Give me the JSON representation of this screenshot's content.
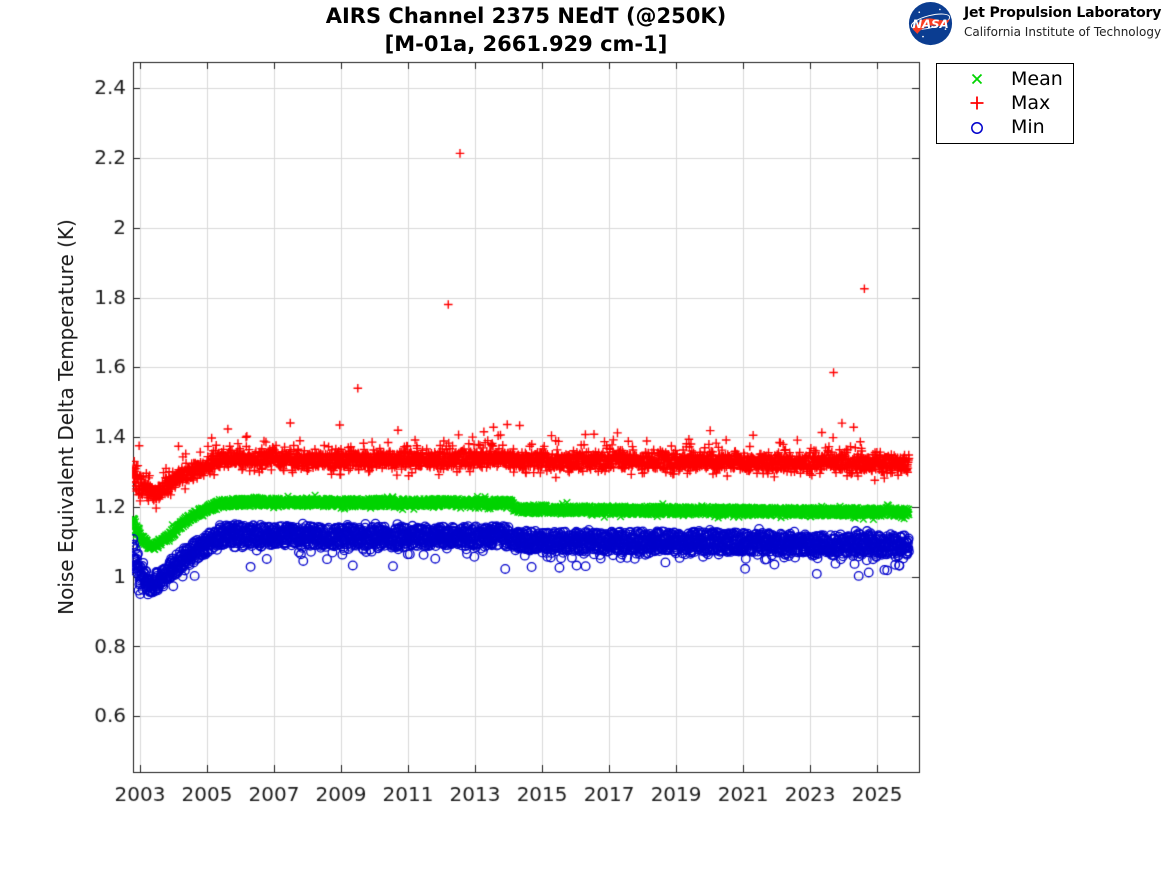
{
  "header": {
    "logo": {
      "nasa_text": "NASA",
      "org_name": "Jet Propulsion Laboratory",
      "org_sub": "California Institute of Technology",
      "nasa_blue": "#0B3D91",
      "nasa_red": "#FC3D21"
    }
  },
  "chart_data": {
    "type": "scatter",
    "title": "AIRS Channel 2375 NEdT (@250K)",
    "subtitle": "[M-01a, 2661.929 cm-1]",
    "xlabel": "",
    "ylabel": "Noise Equivalent Delta Temperature (K)",
    "xlim": [
      2002.79,
      2026.25
    ],
    "ylim": [
      0.44,
      2.475
    ],
    "xticks": [
      2003,
      2005,
      2007,
      2009,
      2011,
      2013,
      2015,
      2017,
      2019,
      2021,
      2023,
      2025
    ],
    "yticks": [
      0.6,
      0.8,
      1,
      1.2,
      1.4,
      1.6,
      1.8,
      2,
      2.2,
      2.4
    ],
    "ytick_labels": [
      "0.6",
      "0.8",
      "1",
      "1.2",
      "1.4",
      "1.6",
      "1.8",
      "2",
      "2.2",
      "2.4"
    ],
    "grid": true,
    "grid_color": "#d9d9d9",
    "axis_color": "#1a1a1a",
    "legend": {
      "position": "northeast-outside",
      "entries": [
        {
          "label": "Mean",
          "marker": "x",
          "color": "#00d400"
        },
        {
          "label": "Max",
          "marker": "+",
          "color": "#ff0000"
        },
        {
          "label": "Min",
          "marker": "o",
          "color": "#0000cc"
        }
      ]
    },
    "seed": 7,
    "points_per_series": 3000,
    "time_range": [
      2002.78,
      2025.95
    ],
    "series": [
      {
        "name": "Mean",
        "marker": "x",
        "color": "#00d400",
        "band": 0.012,
        "tail_up_p": 0.1,
        "tail_up": 0.015,
        "tail_dn_p": 0.1,
        "tail_dn": 0.015,
        "spike_p": 0,
        "spike_min": 0,
        "spike_max": 0,
        "spike_dir": 1,
        "anchors": [
          [
            2002.78,
            1.162
          ],
          [
            2002.92,
            1.128
          ],
          [
            2003.08,
            1.105
          ],
          [
            2003.25,
            1.092
          ],
          [
            2003.45,
            1.088
          ],
          [
            2003.7,
            1.103
          ],
          [
            2004.0,
            1.128
          ],
          [
            2004.4,
            1.163
          ],
          [
            2004.8,
            1.185
          ],
          [
            2005.2,
            1.202
          ],
          [
            2005.6,
            1.212
          ],
          [
            2006.5,
            1.214
          ],
          [
            2009.0,
            1.212
          ],
          [
            2012.0,
            1.212
          ],
          [
            2014.1,
            1.211
          ],
          [
            2014.18,
            1.193
          ],
          [
            2016.0,
            1.191
          ],
          [
            2019.0,
            1.189
          ],
          [
            2022.0,
            1.187
          ],
          [
            2024.0,
            1.186
          ],
          [
            2025.95,
            1.185
          ]
        ],
        "outliers": []
      },
      {
        "name": "Max",
        "marker": "+",
        "color": "#ff0000",
        "band": 0.02,
        "tail_up_p": 0.3,
        "tail_up": 0.05,
        "tail_dn_p": 0.25,
        "tail_dn": 0.035,
        "spike_p": 0.012,
        "spike_min": 0.03,
        "spike_max": 0.085,
        "spike_dir": 1,
        "anchors": [
          [
            2002.78,
            1.298
          ],
          [
            2002.92,
            1.268
          ],
          [
            2003.08,
            1.252
          ],
          [
            2003.25,
            1.244
          ],
          [
            2003.45,
            1.24
          ],
          [
            2003.7,
            1.252
          ],
          [
            2004.0,
            1.272
          ],
          [
            2004.4,
            1.294
          ],
          [
            2004.8,
            1.308
          ],
          [
            2005.2,
            1.328
          ],
          [
            2005.6,
            1.34
          ],
          [
            2006.5,
            1.336
          ],
          [
            2009.0,
            1.334
          ],
          [
            2012.0,
            1.336
          ],
          [
            2013.8,
            1.34
          ],
          [
            2014.18,
            1.333
          ],
          [
            2016.0,
            1.33
          ],
          [
            2019.0,
            1.331
          ],
          [
            2022.0,
            1.327
          ],
          [
            2024.0,
            1.326
          ],
          [
            2025.95,
            1.322
          ]
        ],
        "outliers": [
          [
            2009.5,
            1.54
          ],
          [
            2012.2,
            1.78
          ],
          [
            2012.55,
            2.213
          ],
          [
            2013.55,
            1.428
          ],
          [
            2013.96,
            1.436
          ],
          [
            2014.33,
            1.433
          ],
          [
            2016.55,
            1.408
          ],
          [
            2017.25,
            1.412
          ],
          [
            2021.3,
            1.405
          ],
          [
            2023.35,
            1.413
          ],
          [
            2023.7,
            1.585
          ],
          [
            2023.95,
            1.44
          ],
          [
            2024.3,
            1.428
          ],
          [
            2024.62,
            1.825
          ]
        ]
      },
      {
        "name": "Min",
        "marker": "o",
        "color": "#0000cc",
        "band": 0.028,
        "tail_up_p": 0.15,
        "tail_up": 0.02,
        "tail_dn_p": 0.3,
        "tail_dn": 0.04,
        "spike_p": 0.008,
        "spike_min": 0.02,
        "spike_max": 0.06,
        "spike_dir": -1,
        "anchors": [
          [
            2002.78,
            1.072
          ],
          [
            2002.92,
            1.03
          ],
          [
            2003.08,
            1.002
          ],
          [
            2003.25,
            0.985
          ],
          [
            2003.45,
            0.98
          ],
          [
            2003.7,
            0.998
          ],
          [
            2004.0,
            1.028
          ],
          [
            2004.4,
            1.062
          ],
          [
            2004.8,
            1.083
          ],
          [
            2005.2,
            1.108
          ],
          [
            2005.6,
            1.124
          ],
          [
            2006.5,
            1.116
          ],
          [
            2009.0,
            1.115
          ],
          [
            2012.0,
            1.116
          ],
          [
            2013.8,
            1.118
          ],
          [
            2014.18,
            1.106
          ],
          [
            2016.0,
            1.101
          ],
          [
            2019.0,
            1.102
          ],
          [
            2022.0,
            1.096
          ],
          [
            2024.0,
            1.093
          ],
          [
            2025.95,
            1.09
          ]
        ],
        "outliers": [
          [
            2004.63,
            1.002
          ],
          [
            2006.3,
            1.028
          ],
          [
            2009.35,
            1.032
          ],
          [
            2010.55,
            1.03
          ],
          [
            2013.9,
            1.022
          ],
          [
            2016.3,
            1.03
          ],
          [
            2023.2,
            1.008
          ],
          [
            2024.45,
            1.002
          ],
          [
            2024.75,
            1.012
          ],
          [
            2025.3,
            1.018
          ]
        ]
      }
    ]
  }
}
